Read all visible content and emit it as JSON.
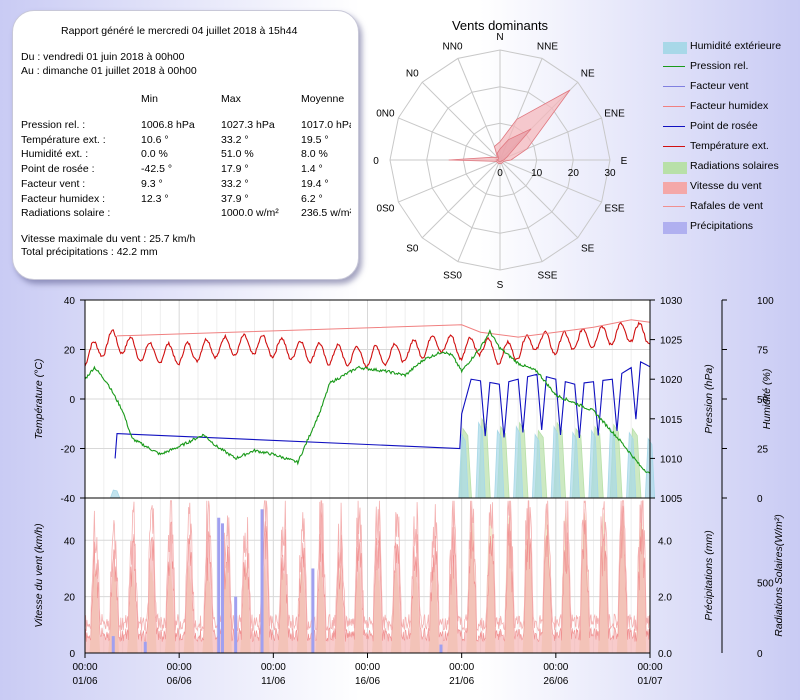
{
  "report": {
    "generated": "Rapport généré le mercredi 04 juillet 2018 à 15h44",
    "from": "Du : vendredi 01 juin 2018 à 00h00",
    "to": "Au : dimanche 01 juillet 2018 à 00h00",
    "headers": [
      "Min",
      "Max",
      "Moyenne"
    ],
    "rows": [
      {
        "label": "Pression rel. :",
        "min": "1006.8 hPa",
        "max": "1027.3 hPa",
        "avg": "1017.0 hPa"
      },
      {
        "label": "Température ext. :",
        "min": "10.6 °",
        "max": "33.2 °",
        "avg": "19.5 °"
      },
      {
        "label": "Humidité ext. :",
        "min": "0.0 %",
        "max": "51.0 %",
        "avg": "8.0 %"
      },
      {
        "label": "Point de rosée :",
        "min": "-42.5 °",
        "max": "17.9 °",
        "avg": "1.4 °"
      },
      {
        "label": "Facteur vent :",
        "min": "9.3 °",
        "max": "33.2 °",
        "avg": "19.4 °"
      },
      {
        "label": "Facteur humidex :",
        "min": "12.3 °",
        "max": "37.9 °",
        "avg": "6.2 °"
      },
      {
        "label": "Radiations solaire :",
        "min": "",
        "max": "1000.0 w/m²",
        "avg": "236.5 w/m²"
      }
    ],
    "max_wind": "Vitesse maximale du vent : 25.7 km/h",
    "total_rain": "Total précipitations : 42.2 mm"
  },
  "wind_rose": {
    "title": "Vents dominants",
    "directions": [
      "N",
      "NNE",
      "NE",
      "ENE",
      "E",
      "ESE",
      "SE",
      "SSE",
      "S",
      "SS0",
      "S0",
      "0S0",
      "0",
      "0N0",
      "N0",
      "NN0"
    ],
    "rings": [
      "0",
      "10",
      "20",
      "30"
    ],
    "max": 30,
    "speed": [
      3,
      6,
      12,
      2,
      1,
      0.5,
      0.5,
      0.5,
      0.5,
      0.5,
      0.5,
      0.5,
      1,
      0.5,
      0.5,
      2
    ],
    "gust": [
      5,
      12,
      27,
      8,
      3,
      1,
      1,
      1,
      1,
      1,
      1,
      1,
      14,
      2,
      1,
      4
    ],
    "colors": {
      "speed": "#e8a0a8",
      "gust": "#f4b8bc"
    }
  },
  "legend": [
    {
      "label": "Humidité extérieure",
      "kind": "area",
      "color": "#a8d8e8"
    },
    {
      "label": "Pression rel.",
      "kind": "line",
      "color": "#1a9a1a"
    },
    {
      "label": "Facteur vent",
      "kind": "line",
      "color": "#8080e0"
    },
    {
      "label": "Facteur humidex",
      "kind": "line",
      "color": "#f08080"
    },
    {
      "label": "Point de rosée",
      "kind": "line",
      "color": "#1010c0"
    },
    {
      "label": "Température ext.",
      "kind": "line",
      "color": "#d01010"
    },
    {
      "label": "Radiations solaires",
      "kind": "area",
      "color": "#b8e0a8"
    },
    {
      "label": "Vitesse du vent",
      "kind": "area",
      "color": "#f4a8a8"
    },
    {
      "label": "Rafales de vent",
      "kind": "line",
      "color": "#f09090"
    },
    {
      "label": "Précipitations",
      "kind": "area",
      "color": "#b0b0f0"
    }
  ],
  "chart_data": {
    "type": "line",
    "x_range_days": [
      0,
      30
    ],
    "x_ticks": [
      {
        "time": "00:00",
        "date": "01/06",
        "day": 0
      },
      {
        "time": "00:00",
        "date": "06/06",
        "day": 5
      },
      {
        "time": "00:00",
        "date": "11/06",
        "day": 10
      },
      {
        "time": "00:00",
        "date": "16/06",
        "day": 15
      },
      {
        "time": "00:00",
        "date": "21/06",
        "day": 20
      },
      {
        "time": "00:00",
        "date": "26/06",
        "day": 25
      },
      {
        "time": "00:00",
        "date": "01/07",
        "day": 30
      }
    ],
    "top": {
      "left_axis": {
        "label": "Température (°C)",
        "range": [
          -40,
          40
        ],
        "ticks": [
          "40",
          "20",
          "0",
          "-20",
          "-40"
        ]
      },
      "pressure_axis": {
        "label": "Pression (hPa)",
        "range": [
          1005,
          1030
        ],
        "ticks": [
          "1030",
          "1025",
          "1020",
          "1015",
          "1010",
          "1005"
        ]
      },
      "humidity_axis": {
        "label": "Humidité (%)",
        "range": [
          0,
          100
        ],
        "ticks": [
          "100",
          "75",
          "50",
          "25",
          "0"
        ]
      },
      "series": {
        "temperature": {
          "name": "Température ext.",
          "color": "#d01010",
          "points": [
            [
              0,
              17
            ],
            [
              1.5,
              24
            ],
            [
              3,
              19
            ],
            [
              5,
              18
            ],
            [
              7,
              21
            ],
            [
              9,
              22
            ],
            [
              11,
              20
            ],
            [
              13,
              18
            ],
            [
              15,
              17
            ],
            [
              17,
              19
            ],
            [
              19,
              23
            ],
            [
              20,
              20
            ],
            [
              21,
              22
            ],
            [
              22,
              18
            ],
            [
              23,
              20
            ],
            [
              24,
              24
            ],
            [
              25,
              22
            ],
            [
              26,
              24
            ],
            [
              27,
              25
            ],
            [
              28,
              26
            ],
            [
              29,
              27
            ],
            [
              30,
              26
            ]
          ],
          "daily_amplitude": 4
        },
        "humidex": {
          "name": "Facteur humidex",
          "color": "#f08080",
          "points": [
            [
              1.7,
              25.5
            ],
            [
              20,
              30
            ],
            [
              21,
              27
            ],
            [
              23,
              25
            ],
            [
              25,
              27
            ],
            [
              27,
              29
            ],
            [
              29,
              32
            ],
            [
              30,
              31
            ]
          ]
        },
        "dew_point": {
          "name": "Point de rosée",
          "color": "#1010c0",
          "points": [
            [
              1.6,
              -24
            ],
            [
              1.7,
              -14
            ],
            [
              19.9,
              -20
            ],
            [
              20,
              -6
            ],
            [
              20.5,
              8
            ],
            [
              22,
              6
            ],
            [
              24,
              10
            ],
            [
              26,
              6
            ],
            [
              28,
              8
            ],
            [
              29.5,
              15
            ],
            [
              30,
              13
            ]
          ]
        },
        "pressure": {
          "name": "Pression rel.",
          "color": "#1a9a1a",
          "points": [
            [
              0,
              1020
            ],
            [
              0.5,
              1021.5
            ],
            [
              1.2,
              1019.5
            ],
            [
              2,
              1016
            ],
            [
              2.5,
              1012.5
            ],
            [
              4,
              1010.5
            ],
            [
              5,
              1011.5
            ],
            [
              6.3,
              1013
            ],
            [
              7,
              1011.5
            ],
            [
              8,
              1010
            ],
            [
              9,
              1011
            ],
            [
              10,
              1010.5
            ],
            [
              11.3,
              1009.5
            ],
            [
              12.5,
              1016
            ],
            [
              13,
              1019.5
            ],
            [
              14.5,
              1021.5
            ],
            [
              16,
              1021
            ],
            [
              17,
              1020.5
            ],
            [
              18,
              1022.5
            ],
            [
              19,
              1023.5
            ],
            [
              19.5,
              1023
            ],
            [
              20,
              1021
            ],
            [
              21,
              1024
            ],
            [
              21.5,
              1026
            ],
            [
              22,
              1024
            ],
            [
              23,
              1022
            ],
            [
              24,
              1021
            ],
            [
              25,
              1018
            ],
            [
              27,
              1016
            ],
            [
              28.5,
              1012
            ],
            [
              29.5,
              1009
            ],
            [
              30,
              1008
            ]
          ]
        },
        "humidity_area": {
          "name": "Humidité extérieure",
          "color": "#a8d8e8",
          "peaks": [
            [
              1.6,
              4
            ],
            [
              20.1,
              32
            ],
            [
              21,
              38
            ],
            [
              22,
              34
            ],
            [
              23,
              36
            ],
            [
              24,
              32
            ],
            [
              25,
              36
            ],
            [
              26,
              33
            ],
            [
              27,
              34
            ],
            [
              28,
              35
            ],
            [
              29,
              33
            ],
            [
              30,
              30
            ]
          ]
        },
        "solar_area": {
          "name": "Radiations solaires",
          "color": "#b8e0a8",
          "peaks": [
            [
              20.2,
              35
            ],
            [
              21.2,
              40
            ],
            [
              22.2,
              36
            ],
            [
              23.2,
              38
            ],
            [
              24.2,
              34
            ],
            [
              25.2,
              38
            ],
            [
              26.2,
              35
            ],
            [
              27.2,
              36
            ],
            [
              28.2,
              37
            ],
            [
              29.2,
              35
            ]
          ]
        }
      }
    },
    "bottom": {
      "wind_axis": {
        "label": "Vitesse du vent (km/h)",
        "range": [
          0,
          55
        ],
        "ticks": [
          "40",
          "20",
          "0"
        ]
      },
      "rain_axis": {
        "label": "Précipitations (mm)",
        "range": [
          0,
          5.5
        ],
        "ticks": [
          "4.0",
          "2.0",
          "0.0"
        ]
      },
      "solar_axis": {
        "label": "Radiations Solaires(W/m²)",
        "range": [
          0,
          1100
        ],
        "ticks": [
          "500",
          "0"
        ]
      },
      "series": {
        "wind_daily_peaks": [
          35,
          36,
          40,
          38,
          42,
          38,
          43,
          44,
          40,
          48,
          42,
          38,
          44,
          40,
          46,
          44,
          40,
          42,
          46,
          44,
          48,
          46,
          44,
          48,
          50,
          46,
          48,
          50,
          48,
          50
        ],
        "rain_events": [
          [
            1.5,
            0.6
          ],
          [
            3.2,
            0.4
          ],
          [
            7.1,
            4.8
          ],
          [
            7.3,
            4.6
          ],
          [
            8.0,
            2.0
          ],
          [
            9.4,
            5.1
          ],
          [
            12.1,
            3.0
          ],
          [
            18.9,
            0.3
          ]
        ]
      }
    }
  }
}
